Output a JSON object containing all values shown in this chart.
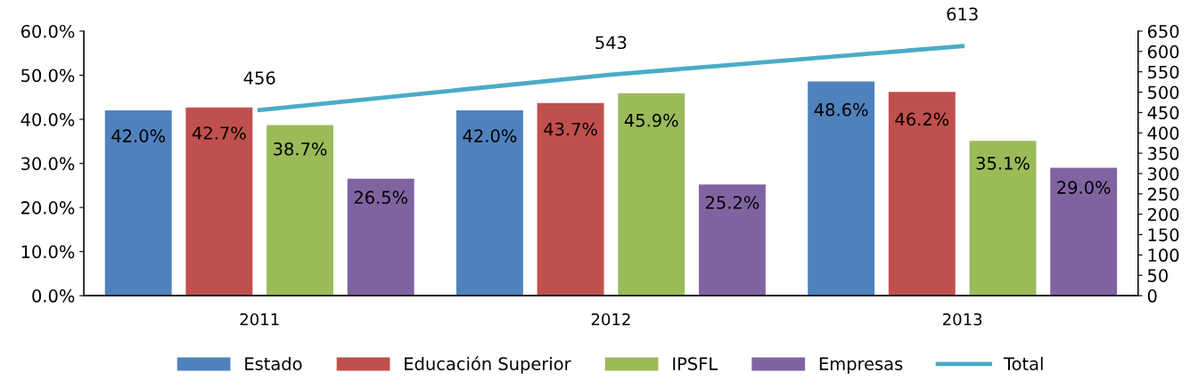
{
  "chart_data": {
    "type": "bar",
    "categories": [
      "2011",
      "2012",
      "2013"
    ],
    "series": [
      {
        "name": "Estado",
        "color": "#4f81bd",
        "values": [
          42.0,
          42.0,
          48.6
        ],
        "value_labels": [
          "42.0%",
          "42.0%",
          "48.6%"
        ]
      },
      {
        "name": "Educación Superior",
        "color": "#c0504d",
        "values": [
          42.7,
          43.7,
          46.2
        ],
        "value_labels": [
          "42.7%",
          "43.7%",
          "46.2%"
        ]
      },
      {
        "name": "IPSFL",
        "color": "#9bbb59",
        "values": [
          38.7,
          45.9,
          35.1
        ],
        "value_labels": [
          "38.7%",
          "45.9%",
          "35.1%"
        ]
      },
      {
        "name": "Empresas",
        "color": "#8064a2",
        "values": [
          26.5,
          25.2,
          29.0
        ],
        "value_labels": [
          "26.5%",
          "25.2%",
          "29.0%"
        ]
      },
      {
        "name": "Total",
        "type": "line",
        "axis": "y2",
        "color": "#4bacc6",
        "values": [
          456,
          543,
          613
        ],
        "value_labels": [
          "456",
          "543",
          "613"
        ]
      }
    ],
    "ylim": [
      0,
      60
    ],
    "yticks": [
      {
        "value": 0,
        "label": "0.0%"
      },
      {
        "value": 10,
        "label": "10.0%"
      },
      {
        "value": 20,
        "label": "20.0%"
      },
      {
        "value": 30,
        "label": "30.0%"
      },
      {
        "value": 40,
        "label": "40.0%"
      },
      {
        "value": 50,
        "label": "50.0%"
      },
      {
        "value": 60,
        "label": "60.0%"
      }
    ],
    "y2lim": [
      0,
      650
    ],
    "y2ticks": [
      0,
      50,
      100,
      150,
      200,
      250,
      300,
      350,
      400,
      450,
      500,
      550,
      600,
      650
    ],
    "grid": false,
    "legend": "bottom",
    "marker": "none"
  }
}
